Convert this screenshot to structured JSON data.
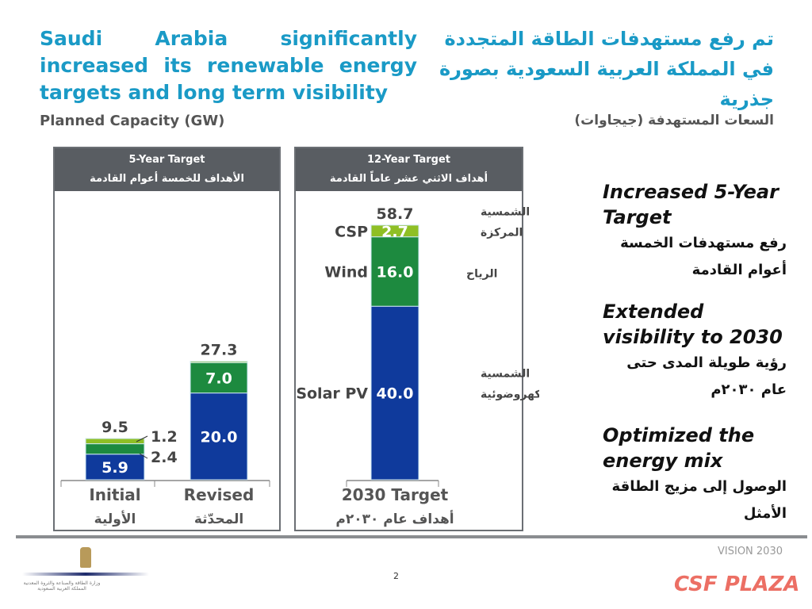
{
  "title": "Saudi Arabia significantly increased its renewable energy targets and long term visibility",
  "title_ar": "تم رفع مستهدفات الطاقة المتجددة في المملكة العربية السعودية بصورة جذرية",
  "subtitle": "Planned Capacity (GW)",
  "subtitle_ar": "السعات المستهدفة (جيجاوات)",
  "colors": {
    "solar_pv": "#0f3a9c",
    "wind": "#1d8a3f",
    "csp": "#8fbf25",
    "title": "#1a9ac6"
  },
  "chart_data": [
    {
      "type": "bar",
      "stacked": true,
      "title": "5-Year Target",
      "title_ar": "الأهداف للخمسة أعوام القادمة",
      "categories": [
        "Initial",
        "Revised"
      ],
      "categories_ar": [
        "الأولية",
        "المحدّثة"
      ],
      "series": [
        {
          "key": "solar_pv",
          "values": [
            5.9,
            20.0
          ]
        },
        {
          "key": "wind",
          "values": [
            2.4,
            7.0
          ]
        },
        {
          "key": "csp",
          "values": [
            1.2,
            0.3
          ]
        }
      ],
      "segment_labels": [
        [
          "5.9",
          "2.4",
          "1.2"
        ],
        [
          "20.0",
          "7.0",
          ""
        ]
      ],
      "totals": [
        "9.5",
        "27.3"
      ]
    },
    {
      "type": "bar",
      "stacked": true,
      "title": "12-Year Target",
      "title_ar": "أهداف الاثني عشر عاماً القادمة",
      "categories": [
        "2030 Target"
      ],
      "categories_ar": [
        "أهداف عام ٢٠٣٠م"
      ],
      "series": [
        {
          "name": "Solar PV",
          "name_ar": "الشمسية الكهروضوئية",
          "key": "solar_pv",
          "values": [
            40.0
          ]
        },
        {
          "name": "Wind",
          "name_ar": "الرياح",
          "key": "wind",
          "values": [
            16.0
          ]
        },
        {
          "name": "CSP",
          "name_ar": "الشمسية المركزة",
          "key": "csp",
          "values": [
            2.7
          ]
        }
      ],
      "segment_labels": [
        [
          "40.0",
          "16.0",
          "2.7"
        ]
      ],
      "totals": [
        "58.7"
      ]
    }
  ],
  "points": [
    {
      "en": "Increased 5-Year Target",
      "ar": "رفع مستهدفات الخمسة أعوام القادمة"
    },
    {
      "en": "Extended visibility to 2030",
      "ar": "رؤية طويلة المدى حتى عام ٢٠٣٠م"
    },
    {
      "en": "Optimized the energy mix",
      "ar": "الوصول إلى مزيج الطاقة الأمثل"
    }
  ],
  "footer": {
    "page": "2",
    "ministry_ar": "وزارة الطاقة والصناعة والثروة المعدنية المملكة العربية السعودية",
    "vision": "VISION 2030",
    "watermark": "CSF PLAZA"
  }
}
